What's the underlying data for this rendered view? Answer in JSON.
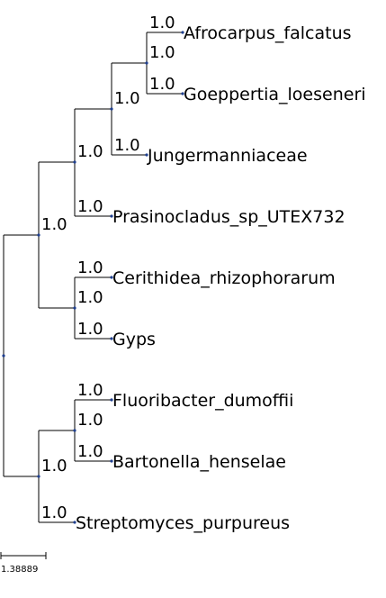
{
  "tree": {
    "leaves": [
      {
        "id": "L1",
        "label": "Afrocarpus_falcatus"
      },
      {
        "id": "L2",
        "label": "Goeppertia_loeseneri"
      },
      {
        "id": "L3",
        "label": "Jungermanniaceae"
      },
      {
        "id": "L4",
        "label": "Prasinocladus_sp_UTEX732"
      },
      {
        "id": "L5",
        "label": "Cerithidea_rhizophorarum"
      },
      {
        "id": "L6",
        "label": "Gyps"
      },
      {
        "id": "L7",
        "label": "Fluoribacter_dumoffii"
      },
      {
        "id": "L8",
        "label": "Bartonella_henselae"
      },
      {
        "id": "L9",
        "label": "Streptomyces_purpureus"
      }
    ],
    "internal_nodes": [
      {
        "id": "N_ag",
        "children": [
          "L1",
          "L2"
        ],
        "support": "1.0"
      },
      {
        "id": "N_agj",
        "children": [
          "N_ag",
          "L3"
        ],
        "support": "1.0"
      },
      {
        "id": "N_agjp",
        "children": [
          "N_agj",
          "L4"
        ],
        "support": "1.0"
      },
      {
        "id": "N_cg",
        "children": [
          "L5",
          "L6"
        ],
        "support": "1.0"
      },
      {
        "id": "N_upper",
        "children": [
          "N_agjp",
          "N_cg"
        ],
        "support": "1.0"
      },
      {
        "id": "N_fb",
        "children": [
          "L7",
          "L8"
        ],
        "support": "1.0"
      },
      {
        "id": "N_lower",
        "children": [
          "N_fb",
          "L9"
        ],
        "support": "1.0"
      },
      {
        "id": "N_root",
        "children": [
          "N_upper",
          "N_lower"
        ],
        "support": ""
      }
    ],
    "leaf_supports": {
      "L1": "1.0",
      "L2": "1.0",
      "L3": "1.0",
      "L4": "1.0",
      "L5": "1.0",
      "L6": "1.0",
      "L7": "1.0",
      "L8": "1.0",
      "L9": "1.0"
    },
    "node_color": "#1f3f8f",
    "scale_bar": {
      "label": "1.38889"
    }
  }
}
